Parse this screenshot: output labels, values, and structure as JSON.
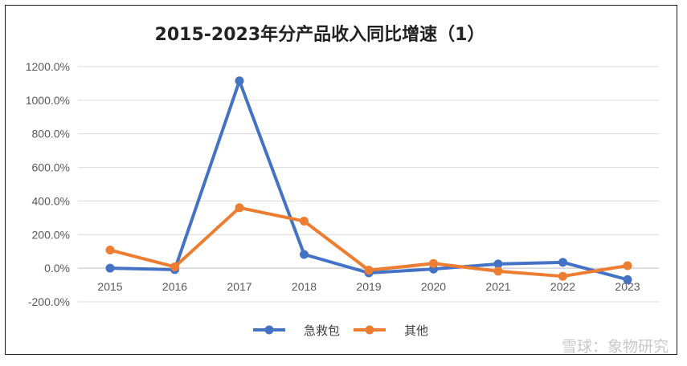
{
  "chart_data": {
    "type": "line",
    "title": "2015-2023年分产品收入同比增速（1）",
    "categories": [
      "2015",
      "2016",
      "2017",
      "2018",
      "2019",
      "2020",
      "2021",
      "2022",
      "2023"
    ],
    "series": [
      {
        "name": "急救包",
        "color": "#4472C4",
        "values": [
          0,
          -8,
          1115,
          82,
          -28,
          -5,
          25,
          35,
          -68
        ]
      },
      {
        "name": "其他",
        "color": "#ED7D31",
        "values": [
          108,
          8,
          360,
          280,
          -12,
          28,
          -18,
          -48,
          15
        ]
      }
    ],
    "ylim": [
      -200,
      1200
    ],
    "yticks": [
      -200,
      0,
      200,
      400,
      600,
      800,
      1000,
      1200
    ],
    "ytick_labels": [
      "-200.0%",
      "0.0%",
      "200.0%",
      "400.0%",
      "600.0%",
      "800.0%",
      "1000.0%",
      "1200.0%"
    ],
    "grid": true,
    "legend_position": "bottom",
    "xlabel": "",
    "ylabel": ""
  },
  "watermark": "雪球：象物研究",
  "colors": {
    "grid": "#d9d9d9",
    "axis": "#bfbfbf"
  }
}
